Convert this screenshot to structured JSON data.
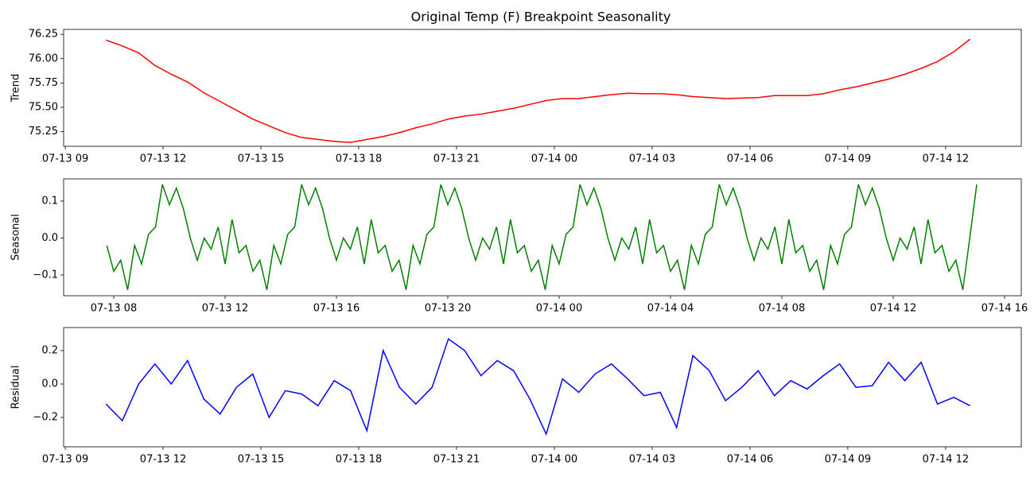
{
  "chart_data": [
    {
      "type": "line",
      "title": "Original Temp (F) Breakpoint Seasonality",
      "ylabel": "Trend",
      "color": "#ff0000",
      "x": [
        10.25,
        10.75,
        11.25,
        11.75,
        12.25,
        12.75,
        13.25,
        13.75,
        14.25,
        14.75,
        15.25,
        15.75,
        16.25,
        16.75,
        17.25,
        17.75,
        18.25,
        18.75,
        19.25,
        19.75,
        20.25,
        20.75,
        21.25,
        21.75,
        22.25,
        22.75,
        23.25,
        23.75,
        24.25,
        24.75,
        25.25,
        25.75,
        26.25,
        26.75,
        27.25,
        27.75,
        28.25,
        28.75,
        29.25,
        29.75,
        30.25,
        30.75,
        31.25,
        31.75,
        32.25,
        32.75,
        33.25,
        33.75,
        34.25,
        34.75,
        35.25,
        35.75,
        36.25,
        36.75
      ],
      "values": [
        76.19,
        76.13,
        76.06,
        75.93,
        75.84,
        75.76,
        75.65,
        75.56,
        75.47,
        75.38,
        75.31,
        75.24,
        75.19,
        75.17,
        75.15,
        75.14,
        75.17,
        75.2,
        75.24,
        75.29,
        75.33,
        75.38,
        75.41,
        75.43,
        75.46,
        75.49,
        75.53,
        75.57,
        75.59,
        75.59,
        75.61,
        75.63,
        75.645,
        75.64,
        75.64,
        75.63,
        75.61,
        75.6,
        75.59,
        75.595,
        75.6,
        75.62,
        75.62,
        75.62,
        75.64,
        75.68,
        75.71,
        75.75,
        75.79,
        75.84,
        75.9,
        75.97,
        76.07,
        76.2
      ],
      "xlim": [
        8.95,
        38.32
      ],
      "ylim": [
        75.1,
        76.3
      ],
      "xticks": [
        {
          "value": 9,
          "label": "07-13 09"
        },
        {
          "value": 12,
          "label": "07-13 12"
        },
        {
          "value": 15,
          "label": "07-13 15"
        },
        {
          "value": 18,
          "label": "07-13 18"
        },
        {
          "value": 21,
          "label": "07-13 21"
        },
        {
          "value": 24,
          "label": "07-14 00"
        },
        {
          "value": 27,
          "label": "07-14 03"
        },
        {
          "value": 30,
          "label": "07-14 06"
        },
        {
          "value": 33,
          "label": "07-14 09"
        },
        {
          "value": 36,
          "label": "07-14 12"
        }
      ],
      "yticks": [
        75.25,
        {
          "value": 75.5,
          "label": "75.50"
        },
        75.75,
        {
          "value": 76,
          "label": "76.00"
        },
        76.25
      ]
    },
    {
      "type": "line",
      "ylabel": "Seasonal",
      "color": "#008000",
      "x": [
        7.75,
        8,
        8.25,
        8.5,
        8.75,
        9,
        9.25,
        9.5,
        9.75,
        10,
        10.25,
        10.5,
        10.75,
        11,
        11.25,
        11.5,
        11.75,
        12,
        12.25,
        12.5,
        12.75,
        13,
        13.25,
        13.5,
        13.75,
        14,
        14.25,
        14.5,
        14.75,
        15,
        15.25,
        15.5,
        15.75,
        16,
        16.25,
        16.5,
        16.75,
        17,
        17.25,
        17.5,
        17.75,
        18,
        18.25,
        18.5,
        18.75,
        19,
        19.25,
        19.5,
        19.75,
        20,
        20.25,
        20.5,
        20.75,
        21,
        21.25,
        21.5,
        21.75,
        22,
        22.25,
        22.5,
        22.75,
        23,
        23.25,
        23.5,
        23.75,
        24,
        24.25,
        24.5,
        24.75,
        25,
        25.25,
        25.5,
        25.75,
        26,
        26.25,
        26.5,
        26.75,
        27,
        27.25,
        27.5,
        27.75,
        28,
        28.25,
        28.5,
        28.75,
        29,
        29.25,
        29.5,
        29.75,
        30,
        30.25,
        30.5,
        30.75,
        31,
        31.25,
        31.5,
        31.75,
        32,
        32.25,
        32.5,
        32.75,
        33,
        33.25,
        33.5,
        33.75,
        34,
        34.25,
        34.5,
        34.75,
        35,
        35.25,
        35.5,
        35.75,
        36,
        36.25,
        36.5,
        36.75,
        37,
        37.25,
        37.5,
        37.75,
        38,
        38.25,
        38.5,
        38.75,
        39
      ],
      "values": [
        -0.02,
        -0.09,
        -0.06,
        -0.14,
        -0.02,
        -0.07,
        0.01,
        0.03,
        0.145,
        0.09,
        0.135,
        0.08,
        0.0,
        -0.06,
        0.0,
        -0.03,
        0.03,
        -0.07,
        0.05,
        -0.04,
        -0.02,
        -0.09,
        -0.06,
        -0.14,
        -0.02,
        -0.07,
        0.01,
        0.03,
        0.145,
        0.09,
        0.135,
        0.08,
        0.0,
        -0.06,
        0.0,
        -0.03,
        0.03,
        -0.07,
        0.05,
        -0.04,
        -0.02,
        -0.09,
        -0.06,
        -0.14,
        -0.02,
        -0.07,
        0.01,
        0.03,
        0.145,
        0.09,
        0.135,
        0.08,
        0.0,
        -0.06,
        0.0,
        -0.03,
        0.03,
        -0.07,
        0.05,
        -0.04,
        -0.02,
        -0.09,
        -0.06,
        -0.14,
        -0.02,
        -0.07,
        0.01,
        0.03,
        0.145,
        0.09,
        0.135,
        0.08,
        0.0,
        -0.06,
        0.0,
        -0.03,
        0.03,
        -0.07,
        0.05,
        -0.04,
        -0.02,
        -0.09,
        -0.06,
        -0.14,
        -0.02,
        -0.07,
        0.01,
        0.03,
        0.145,
        0.09,
        0.135,
        0.08,
        0.0,
        -0.06,
        0.0,
        -0.03,
        0.03,
        -0.07,
        0.05,
        -0.04,
        -0.02,
        -0.09,
        -0.06,
        -0.14,
        -0.02,
        -0.07,
        0.01,
        0.03,
        0.145,
        0.09,
        0.135,
        0.08,
        0.0,
        -0.06,
        0.0,
        -0.03,
        0.03,
        -0.07,
        0.05,
        -0.04,
        -0.02,
        -0.09,
        -0.06,
        -0.14,
        0.0,
        0.145
      ],
      "xlim": [
        6.2,
        40.6
      ],
      "ylim": [
        -0.156,
        0.16
      ],
      "xticks": [
        {
          "value": 8,
          "label": "07-13 08"
        },
        {
          "value": 12,
          "label": "07-13 12"
        },
        {
          "value": 16,
          "label": "07-13 16"
        },
        {
          "value": 20,
          "label": "07-13 20"
        },
        {
          "value": 24,
          "label": "07-14 00"
        },
        {
          "value": 28,
          "label": "07-14 04"
        },
        {
          "value": 32,
          "label": "07-14 08"
        },
        {
          "value": 36,
          "label": "07-14 12"
        },
        {
          "value": 40,
          "label": "07-14 16"
        }
      ],
      "yticks": [
        {
          "value": -0.1,
          "label": "−0.1"
        },
        {
          "value": 0,
          "label": "0.0"
        },
        0.1
      ]
    },
    {
      "type": "line",
      "ylabel": "Residual",
      "color": "#0000ff",
      "x": [
        10.25,
        10.75,
        11.25,
        11.75,
        12.25,
        12.75,
        13.25,
        13.75,
        14.25,
        14.75,
        15.25,
        15.75,
        16.25,
        16.75,
        17.25,
        17.75,
        18.25,
        18.75,
        19.25,
        19.75,
        20.25,
        20.75,
        21.25,
        21.75,
        22.25,
        22.75,
        23.25,
        23.75,
        24.25,
        24.75,
        25.25,
        25.75,
        26.25,
        26.75,
        27.25,
        27.75,
        28.25,
        28.75,
        29.25,
        29.75,
        30.25,
        30.75,
        31.25,
        31.75,
        32.25,
        32.75,
        33.25,
        33.75,
        34.25,
        34.75,
        35.25,
        35.75,
        36.25,
        36.75
      ],
      "values": [
        -0.12,
        -0.22,
        0.0,
        0.12,
        0.0,
        0.14,
        -0.09,
        -0.18,
        -0.02,
        0.06,
        -0.2,
        -0.04,
        -0.06,
        -0.13,
        0.02,
        -0.04,
        -0.28,
        0.2,
        -0.02,
        -0.12,
        -0.02,
        0.27,
        0.2,
        0.05,
        0.14,
        0.08,
        -0.09,
        -0.3,
        0.03,
        -0.05,
        0.06,
        0.12,
        0.03,
        -0.07,
        -0.05,
        -0.26,
        0.17,
        0.08,
        -0.1,
        -0.02,
        0.08,
        -0.07,
        0.02,
        -0.03,
        0.05,
        0.12,
        -0.02,
        -0.01,
        0.13,
        0.02,
        0.13,
        -0.12,
        -0.08,
        -0.13
      ],
      "xlim": [
        8.95,
        38.32
      ],
      "ylim": [
        -0.376,
        0.338
      ],
      "xticks": [
        {
          "value": 9,
          "label": "07-13 09"
        },
        {
          "value": 12,
          "label": "07-13 12"
        },
        {
          "value": 15,
          "label": "07-13 15"
        },
        {
          "value": 18,
          "label": "07-13 18"
        },
        {
          "value": 21,
          "label": "07-13 21"
        },
        {
          "value": 24,
          "label": "07-14 00"
        },
        {
          "value": 27,
          "label": "07-14 03"
        },
        {
          "value": 30,
          "label": "07-14 06"
        },
        {
          "value": 33,
          "label": "07-14 09"
        },
        {
          "value": 36,
          "label": "07-14 12"
        }
      ],
      "yticks": [
        {
          "value": -0.2,
          "label": "−0.2"
        },
        {
          "value": 0,
          "label": "0.0"
        },
        0.2
      ]
    }
  ]
}
